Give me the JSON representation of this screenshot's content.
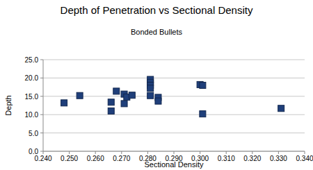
{
  "chart_data": {
    "type": "scatter",
    "title": "Depth of Penetration vs Sectional Density",
    "subtitle": "Bonded Bullets",
    "x_label": "Sectional Density",
    "y_label": "Depth",
    "x": [
      0.248,
      0.254,
      0.266,
      0.266,
      0.268,
      0.271,
      0.271,
      0.272,
      0.274,
      0.281,
      0.281,
      0.281,
      0.281,
      0.281,
      0.284,
      0.284,
      0.3,
      0.301,
      0.301,
      0.331
    ],
    "values": [
      13.2,
      15.2,
      13.4,
      11.0,
      16.4,
      15.6,
      13.0,
      14.8,
      15.3,
      19.6,
      18.8,
      18.0,
      17.2,
      15.2,
      14.7,
      13.7,
      18.2,
      18.0,
      10.2,
      11.7
    ],
    "color": "#1f3f7a",
    "marker": "square",
    "grid": true,
    "xlim": [
      0.24,
      0.34
    ],
    "ylim": [
      0,
      25
    ],
    "xticks": [
      {
        "value": 0.24,
        "label": "0.240"
      },
      {
        "value": 0.25,
        "label": "0.250"
      },
      {
        "value": 0.26,
        "label": "0.260"
      },
      {
        "value": 0.27,
        "label": "0.270"
      },
      {
        "value": 0.28,
        "label": "0.280"
      },
      {
        "value": 0.29,
        "label": "0.290"
      },
      {
        "value": 0.3,
        "label": "0.300"
      },
      {
        "value": 0.31,
        "label": "0.310"
      },
      {
        "value": 0.32,
        "label": "0.320"
      },
      {
        "value": 0.33,
        "label": "0.330"
      },
      {
        "value": 0.34,
        "label": "0.340"
      }
    ],
    "yticks": [
      {
        "value": 0,
        "label": "0.0"
      },
      {
        "value": 5,
        "label": "5.0"
      },
      {
        "value": 10,
        "label": "10.0"
      },
      {
        "value": 15,
        "label": "15.0"
      },
      {
        "value": 20,
        "label": "20.0"
      },
      {
        "value": 25,
        "label": "25.0"
      }
    ]
  }
}
